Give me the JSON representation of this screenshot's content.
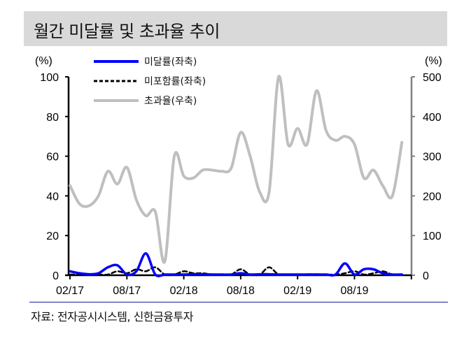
{
  "title": "월간 미달률 및 초과율 추이",
  "source": "자료: 전자공시시스템, 신한금융투자",
  "chart_data": {
    "type": "line",
    "title": "월간 미달률 및 초과율 추이",
    "left_axis": {
      "unit_label": "(%)",
      "ylim": [
        0,
        100
      ],
      "ticks": [
        "0",
        "20",
        "40",
        "60",
        "80",
        "100"
      ]
    },
    "right_axis": {
      "unit_label": "(%)",
      "ylim": [
        0,
        500
      ],
      "ticks": [
        "0",
        "100",
        "200",
        "300",
        "400",
        "500"
      ]
    },
    "x_tick_labels": [
      "02/17",
      "08/17",
      "02/18",
      "08/18",
      "02/19",
      "08/19"
    ],
    "x": [
      "02/17",
      "03/17",
      "04/17",
      "05/17",
      "06/17",
      "07/17",
      "08/17",
      "09/17",
      "10/17",
      "11/17",
      "12/17",
      "01/18",
      "02/18",
      "03/18",
      "04/18",
      "05/18",
      "06/18",
      "07/18",
      "08/18",
      "09/18",
      "10/18",
      "11/18",
      "12/18",
      "01/19",
      "02/19",
      "03/19",
      "04/19",
      "05/19",
      "06/19",
      "07/19",
      "08/19",
      "09/19",
      "10/19",
      "11/19",
      "12/19",
      "01/20"
    ],
    "legend": [
      {
        "label": "미달률(좌축)",
        "color": "#0000ff",
        "style": "solid"
      },
      {
        "label": "미포함률(좌축)",
        "color": "#000000",
        "style": "dashed"
      },
      {
        "label": "초과율(우축)",
        "color": "#bfbfbf",
        "style": "solid"
      }
    ],
    "series": [
      {
        "name": "미달률(좌축)",
        "axis": "left",
        "values": [
          2,
          1,
          0.5,
          1,
          4,
          5,
          0,
          2,
          11,
          0,
          0,
          0,
          0,
          0.5,
          0.5,
          0,
          0,
          0,
          1,
          0,
          0.5,
          0.5,
          0,
          0,
          0,
          0,
          0,
          0,
          0,
          6,
          0,
          3,
          3,
          1,
          0,
          0
        ]
      },
      {
        "name": "미포함률(좌축)",
        "axis": "left",
        "values": [
          0,
          0,
          0,
          0,
          0,
          2,
          1,
          3,
          2,
          4,
          0,
          0,
          2,
          1,
          1,
          0,
          0,
          0,
          3,
          0,
          0,
          4,
          0,
          0,
          0,
          0.5,
          0.5,
          0,
          0,
          1,
          2,
          0,
          1,
          2,
          0,
          0
        ]
      },
      {
        "name": "초과율(우축)",
        "axis": "right",
        "values": [
          226,
          180,
          175,
          200,
          262,
          230,
          272,
          190,
          150,
          160,
          35,
          300,
          250,
          245,
          265,
          265,
          262,
          270,
          360,
          300,
          210,
          210,
          500,
          330,
          370,
          330,
          465,
          365,
          340,
          350,
          330,
          245,
          265,
          225,
          200,
          335
        ]
      }
    ]
  }
}
